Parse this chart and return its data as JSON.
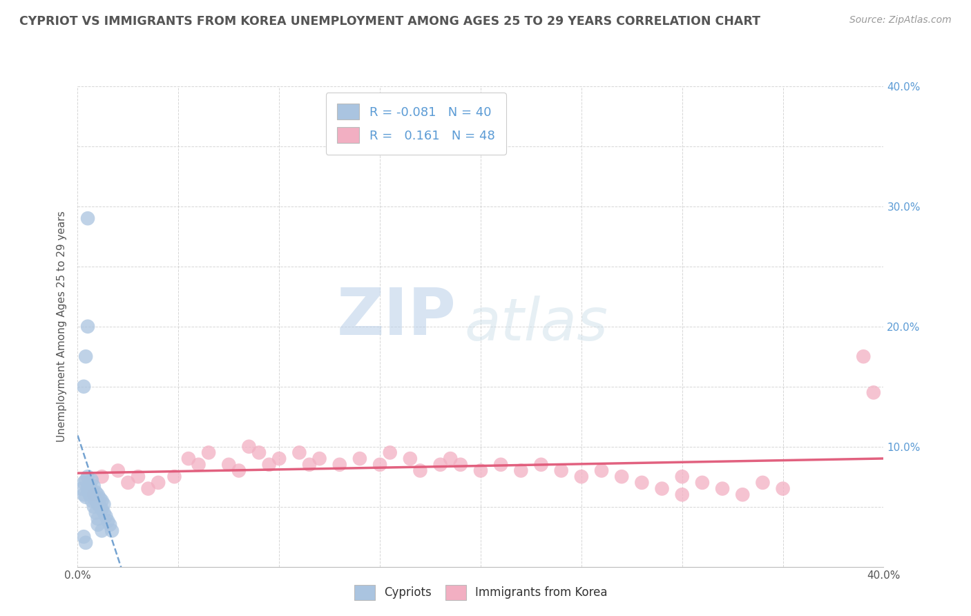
{
  "title": "CYPRIOT VS IMMIGRANTS FROM KOREA UNEMPLOYMENT AMONG AGES 25 TO 29 YEARS CORRELATION CHART",
  "source": "Source: ZipAtlas.com",
  "ylabel": "Unemployment Among Ages 25 to 29 years",
  "xlim": [
    0.0,
    0.4
  ],
  "ylim": [
    0.0,
    0.4
  ],
  "xticks": [
    0.0,
    0.05,
    0.1,
    0.15,
    0.2,
    0.25,
    0.3,
    0.35,
    0.4
  ],
  "yticks": [
    0.0,
    0.05,
    0.1,
    0.15,
    0.2,
    0.25,
    0.3,
    0.35,
    0.4
  ],
  "legend_labels": [
    "Cypriots",
    "Immigrants from Korea"
  ],
  "cypriot_R": "-0.081",
  "cypriot_N": "40",
  "korea_R": "0.161",
  "korea_N": "48",
  "cypriot_color": "#aac4e0",
  "korea_color": "#f2afc2",
  "cypriot_line_color": "#6699cc",
  "korea_line_color": "#e05878",
  "background_color": "#ffffff",
  "grid_color": "#cccccc",
  "watermark_zip": "ZIP",
  "watermark_atlas": "atlas",
  "title_color": "#555555",
  "source_color": "#999999",
  "axis_label_color": "#555555",
  "tick_color": "#5b9bd5",
  "cypriot_x": [
    0.002,
    0.003,
    0.003,
    0.004,
    0.004,
    0.005,
    0.005,
    0.006,
    0.006,
    0.007,
    0.007,
    0.008,
    0.008,
    0.009,
    0.009,
    0.01,
    0.01,
    0.011,
    0.011,
    0.012,
    0.012,
    0.013,
    0.013,
    0.014,
    0.015,
    0.016,
    0.017,
    0.003,
    0.004,
    0.005,
    0.005,
    0.006,
    0.007,
    0.008,
    0.009,
    0.01,
    0.01,
    0.012,
    0.003,
    0.004
  ],
  "cypriot_y": [
    0.065,
    0.06,
    0.07,
    0.058,
    0.072,
    0.065,
    0.075,
    0.06,
    0.068,
    0.063,
    0.072,
    0.067,
    0.058,
    0.062,
    0.055,
    0.06,
    0.052,
    0.057,
    0.05,
    0.055,
    0.048,
    0.045,
    0.052,
    0.042,
    0.038,
    0.035,
    0.03,
    0.15,
    0.175,
    0.2,
    0.29,
    0.06,
    0.055,
    0.05,
    0.045,
    0.04,
    0.035,
    0.03,
    0.025,
    0.02
  ],
  "korea_x": [
    0.008,
    0.012,
    0.02,
    0.025,
    0.03,
    0.035,
    0.04,
    0.048,
    0.055,
    0.06,
    0.065,
    0.075,
    0.08,
    0.085,
    0.09,
    0.095,
    0.1,
    0.11,
    0.115,
    0.12,
    0.13,
    0.14,
    0.15,
    0.155,
    0.165,
    0.17,
    0.18,
    0.185,
    0.19,
    0.2,
    0.21,
    0.22,
    0.23,
    0.24,
    0.25,
    0.26,
    0.27,
    0.28,
    0.29,
    0.3,
    0.31,
    0.32,
    0.33,
    0.34,
    0.35,
    0.3,
    0.395,
    0.39
  ],
  "korea_y": [
    0.06,
    0.075,
    0.08,
    0.07,
    0.075,
    0.065,
    0.07,
    0.075,
    0.09,
    0.085,
    0.095,
    0.085,
    0.08,
    0.1,
    0.095,
    0.085,
    0.09,
    0.095,
    0.085,
    0.09,
    0.085,
    0.09,
    0.085,
    0.095,
    0.09,
    0.08,
    0.085,
    0.09,
    0.085,
    0.08,
    0.085,
    0.08,
    0.085,
    0.08,
    0.075,
    0.08,
    0.075,
    0.07,
    0.065,
    0.075,
    0.07,
    0.065,
    0.06,
    0.07,
    0.065,
    0.06,
    0.145,
    0.175
  ]
}
